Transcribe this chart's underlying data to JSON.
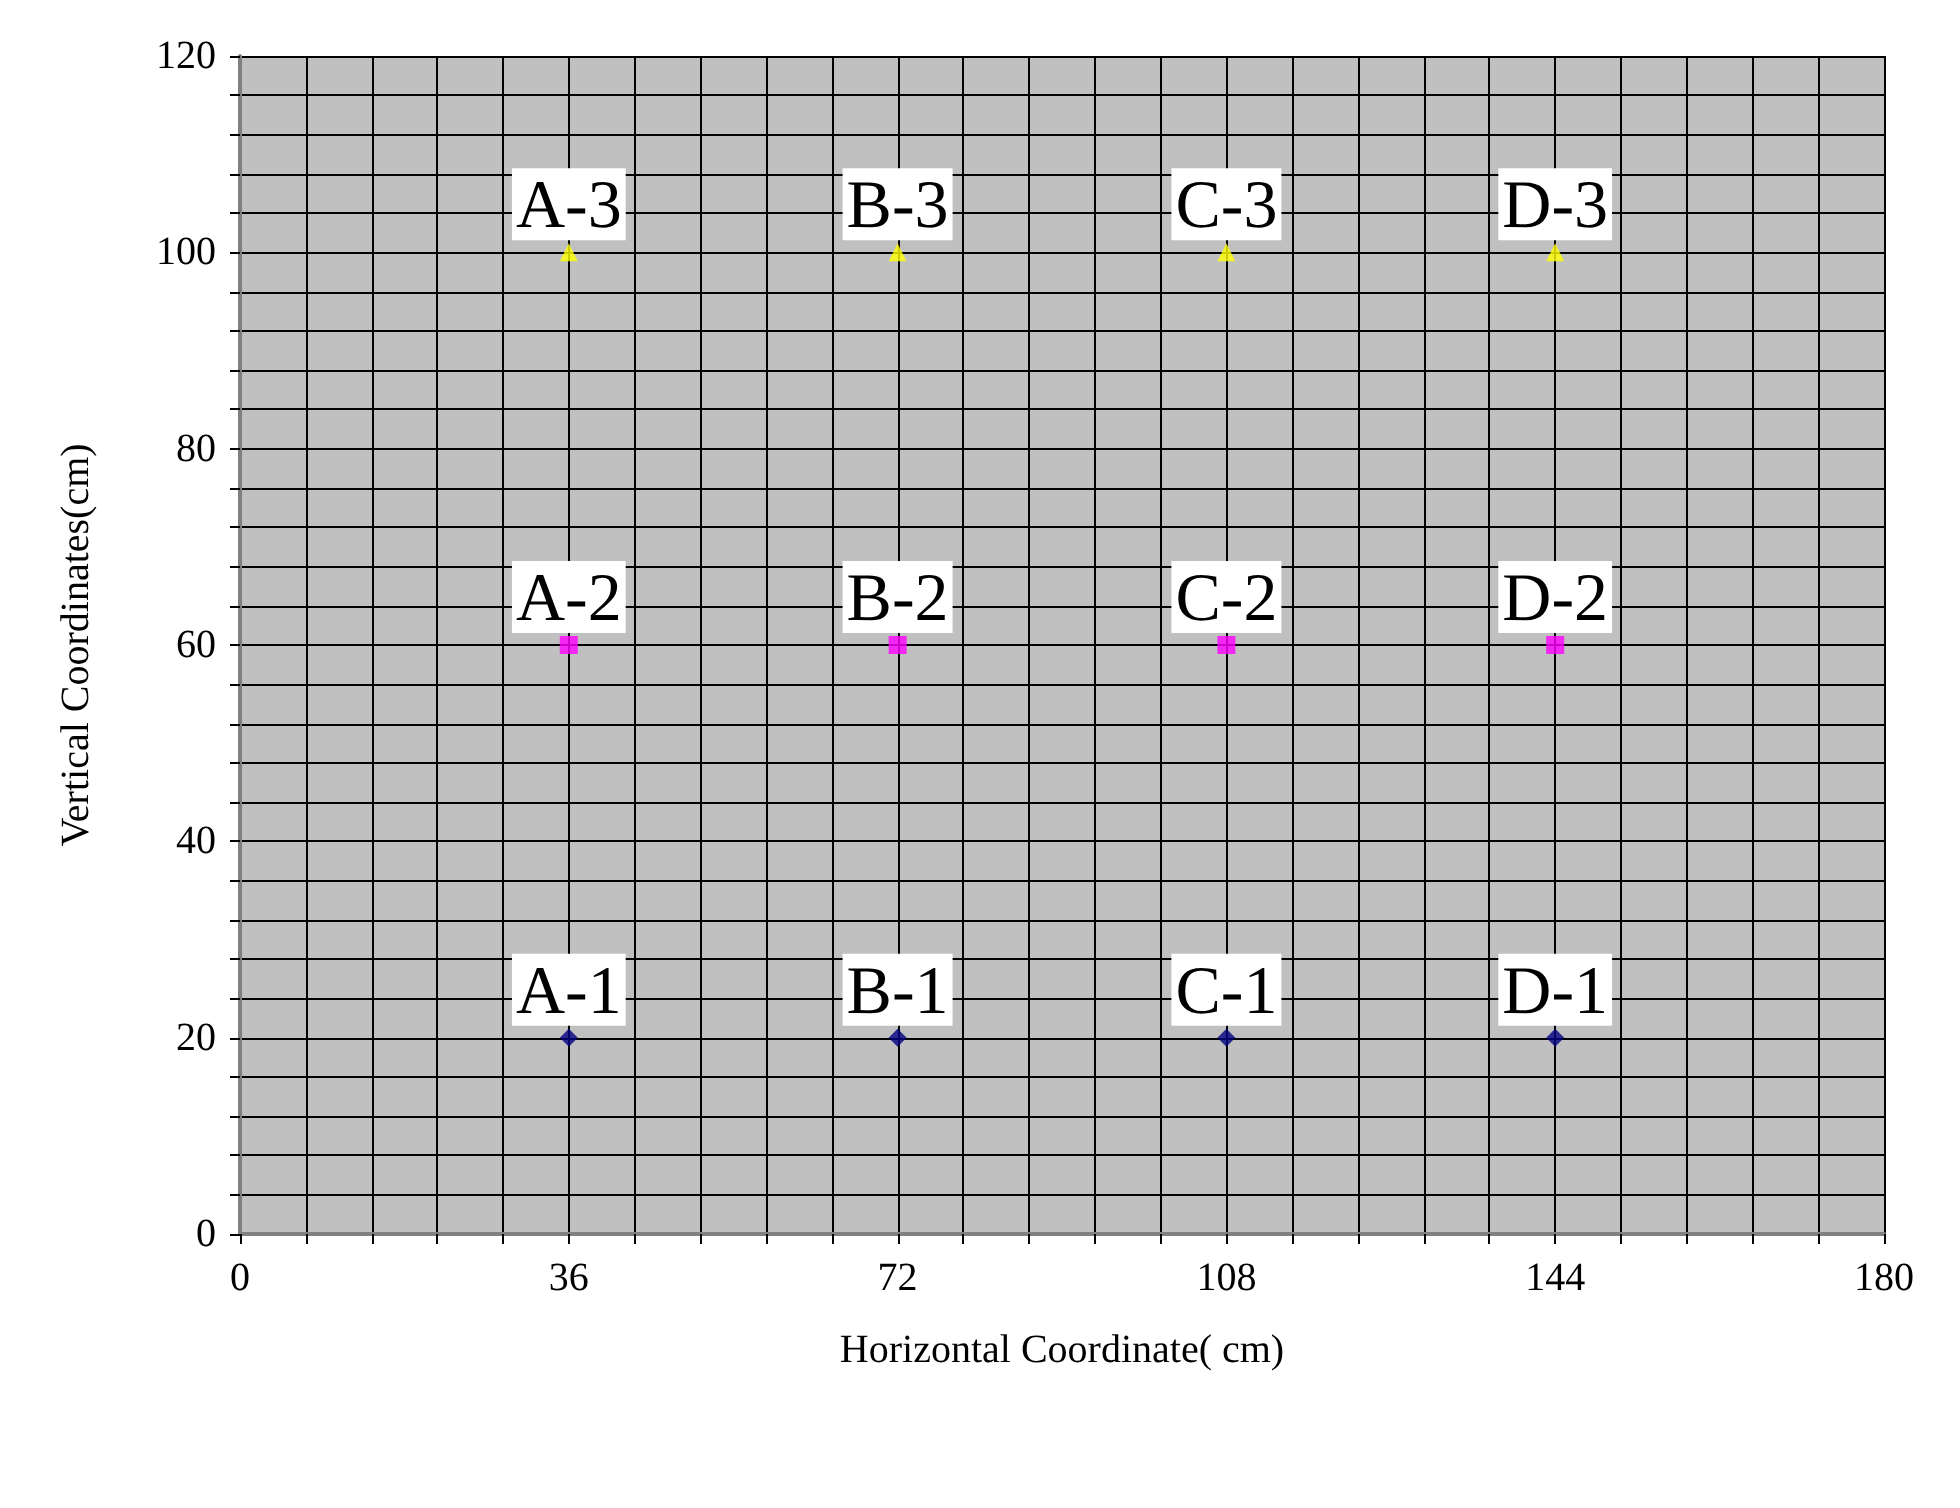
{
  "chart_data": {
    "type": "scatter",
    "xlabel": "Horizontal Coordinate( cm)",
    "ylabel": "Vertical Coordinates(cm)",
    "xlim": [
      0,
      180
    ],
    "ylim": [
      0,
      120
    ],
    "xticks": [
      0,
      {
        "value": 7.2,
        "label": null
      },
      {
        "value": 14.4,
        "label": null
      },
      {
        "value": 21.6,
        "label": null
      },
      {
        "value": 28.8,
        "label": null
      },
      36,
      {
        "value": 43.2,
        "label": null
      },
      {
        "value": 50.4,
        "label": null
      },
      {
        "value": 57.6,
        "label": null
      },
      {
        "value": 64.8,
        "label": null
      },
      72,
      {
        "value": 79.2,
        "label": null
      },
      {
        "value": 86.4,
        "label": null
      },
      {
        "value": 93.6,
        "label": null
      },
      {
        "value": 100.8,
        "label": null
      },
      108,
      {
        "value": 115.2,
        "label": null
      },
      {
        "value": 122.4,
        "label": null
      },
      {
        "value": 129.6,
        "label": null
      },
      {
        "value": 136.8,
        "label": null
      },
      144,
      {
        "value": 151.2,
        "label": null
      },
      {
        "value": 158.4,
        "label": null
      },
      {
        "value": 165.6,
        "label": null
      },
      {
        "value": 172.8,
        "label": null
      },
      180
    ],
    "yticks": [
      0,
      {
        "value": 4,
        "label": null
      },
      {
        "value": 8,
        "label": null
      },
      {
        "value": 12,
        "label": null
      },
      {
        "value": 16,
        "label": null
      },
      20,
      {
        "value": 24,
        "label": null
      },
      {
        "value": 28,
        "label": null
      },
      {
        "value": 32,
        "label": null
      },
      {
        "value": 36,
        "label": null
      },
      40,
      {
        "value": 44,
        "label": null
      },
      {
        "value": 48,
        "label": null
      },
      {
        "value": 52,
        "label": null
      },
      {
        "value": 56,
        "label": null
      },
      60,
      {
        "value": 64,
        "label": null
      },
      {
        "value": 68,
        "label": null
      },
      {
        "value": 72,
        "label": null
      },
      {
        "value": 76,
        "label": null
      },
      80,
      {
        "value": 84,
        "label": null
      },
      {
        "value": 88,
        "label": null
      },
      {
        "value": 92,
        "label": null
      },
      {
        "value": 96,
        "label": null
      },
      100,
      {
        "value": 104,
        "label": null
      },
      {
        "value": 108,
        "label": null
      },
      {
        "value": 112,
        "label": null
      },
      {
        "value": 116,
        "label": null
      },
      120
    ],
    "grid": true,
    "series": [
      {
        "color": "#000080",
        "marker": "diamond",
        "x": [
          36,
          72,
          108,
          144
        ],
        "values": [
          20,
          20,
          20,
          20
        ]
      },
      {
        "color": "#ff00ff",
        "marker": "square",
        "x": [
          36,
          72,
          108,
          144
        ],
        "values": [
          60,
          60,
          60,
          60
        ]
      },
      {
        "color": "#ffff00",
        "marker": "triangle",
        "x": [
          36,
          72,
          108,
          144
        ],
        "values": [
          100,
          100,
          100,
          100
        ]
      }
    ],
    "annotations": [
      {
        "text": "A-1",
        "x": 36,
        "y": 20
      },
      {
        "text": "B-1",
        "x": 72,
        "y": 20
      },
      {
        "text": "C-1",
        "x": 108,
        "y": 20
      },
      {
        "text": "D-1",
        "x": 144,
        "y": 20
      },
      {
        "text": "A-2",
        "x": 36,
        "y": 60
      },
      {
        "text": "B-2",
        "x": 72,
        "y": 60
      },
      {
        "text": "C-2",
        "x": 108,
        "y": 60
      },
      {
        "text": "D-2",
        "x": 144,
        "y": 60
      },
      {
        "text": "A-3",
        "x": 36,
        "y": 100
      },
      {
        "text": "B-3",
        "x": 72,
        "y": 100
      },
      {
        "text": "C-3",
        "x": 108,
        "y": 100
      },
      {
        "text": "D-3",
        "x": 144,
        "y": 100
      }
    ]
  }
}
